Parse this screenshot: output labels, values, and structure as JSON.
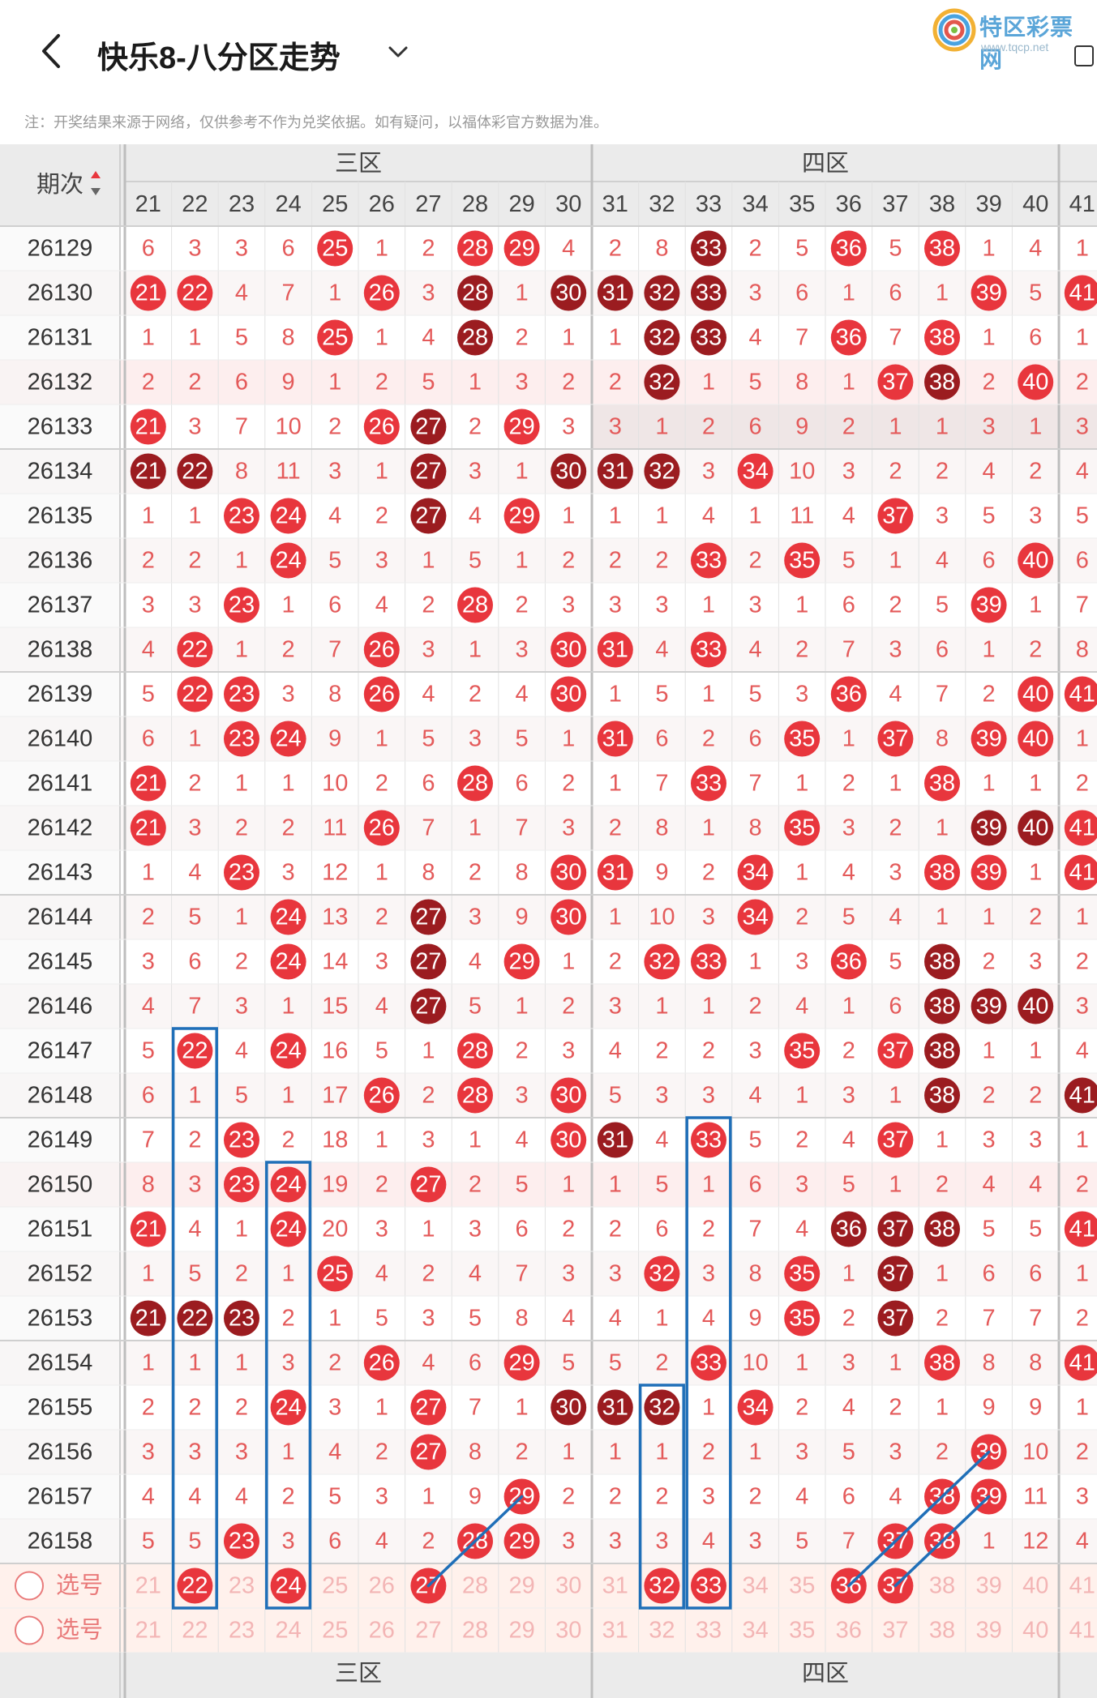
{
  "header": {
    "title": "快乐8-八分区走势",
    "logo_text": "特区彩票网",
    "logo_url": "www.tqcp.net"
  },
  "notice": "注：开奖结果来源于网络，仅供参考不作为兑奖依据。如有疑问，以福体彩官方数据为准。",
  "table": {
    "period_header": "期次",
    "zones": [
      "三区",
      "四区"
    ],
    "columns": [
      21,
      22,
      23,
      24,
      25,
      26,
      27,
      28,
      29,
      30,
      31,
      32,
      33,
      34,
      35,
      36,
      37,
      38,
      39,
      40,
      41
    ],
    "rows": [
      {
        "period": "26129",
        "cells": [
          "6",
          "3",
          "3",
          "6",
          "25",
          "1",
          "2",
          "28",
          "29",
          "4",
          "2",
          "8",
          "33",
          "2",
          "5",
          "36",
          "5",
          "38",
          "1",
          "4",
          "1"
        ]
      },
      {
        "period": "26130",
        "cells": [
          "21",
          "22",
          "4",
          "7",
          "1",
          "26",
          "3",
          "28",
          "1",
          "30",
          "31",
          "32",
          "33",
          "3",
          "6",
          "1",
          "6",
          "1",
          "39",
          "5",
          "41"
        ]
      },
      {
        "period": "26131",
        "cells": [
          "1",
          "1",
          "5",
          "8",
          "25",
          "1",
          "4",
          "28",
          "2",
          "1",
          "1",
          "32",
          "33",
          "4",
          "7",
          "36",
          "7",
          "38",
          "1",
          "6",
          "1"
        ]
      },
      {
        "period": "26132",
        "cells": [
          "2",
          "2",
          "6",
          "9",
          "1",
          "2",
          "5",
          "1",
          "3",
          "2",
          "2",
          "32",
          "1",
          "5",
          "8",
          "1",
          "37",
          "38",
          "2",
          "40",
          "2"
        ]
      },
      {
        "period": "26133",
        "cells": [
          "21",
          "3",
          "7",
          "10",
          "2",
          "26",
          "27",
          "2",
          "29",
          "3",
          "3",
          "1",
          "2",
          "6",
          "9",
          "2",
          "1",
          "1",
          "3",
          "1",
          "3"
        ]
      },
      {
        "period": "26134",
        "cells": [
          "21",
          "22",
          "8",
          "11",
          "3",
          "1",
          "27",
          "3",
          "1",
          "30",
          "31",
          "32",
          "3",
          "34",
          "10",
          "3",
          "2",
          "2",
          "4",
          "2",
          "4"
        ]
      },
      {
        "period": "26135",
        "cells": [
          "1",
          "1",
          "23",
          "24",
          "4",
          "2",
          "27",
          "4",
          "29",
          "1",
          "1",
          "1",
          "4",
          "1",
          "11",
          "4",
          "37",
          "3",
          "5",
          "3",
          "5"
        ]
      },
      {
        "period": "26136",
        "cells": [
          "2",
          "2",
          "1",
          "24",
          "5",
          "3",
          "1",
          "5",
          "1",
          "2",
          "2",
          "2",
          "33",
          "2",
          "35",
          "5",
          "1",
          "4",
          "6",
          "40",
          "6"
        ]
      },
      {
        "period": "26137",
        "cells": [
          "3",
          "3",
          "23",
          "1",
          "6",
          "4",
          "2",
          "28",
          "2",
          "3",
          "3",
          "3",
          "1",
          "3",
          "1",
          "6",
          "2",
          "5",
          "39",
          "1",
          "7"
        ]
      },
      {
        "period": "26138",
        "cells": [
          "4",
          "22",
          "1",
          "2",
          "7",
          "26",
          "3",
          "1",
          "3",
          "30",
          "31",
          "4",
          "33",
          "4",
          "2",
          "7",
          "3",
          "6",
          "1",
          "2",
          "8"
        ]
      },
      {
        "period": "26139",
        "cells": [
          "5",
          "22",
          "23",
          "3",
          "8",
          "26",
          "4",
          "2",
          "4",
          "30",
          "1",
          "5",
          "1",
          "5",
          "3",
          "36",
          "4",
          "7",
          "2",
          "40",
          "41"
        ]
      },
      {
        "period": "26140",
        "cells": [
          "6",
          "1",
          "23",
          "24",
          "9",
          "1",
          "5",
          "3",
          "5",
          "1",
          "31",
          "6",
          "2",
          "6",
          "35",
          "1",
          "37",
          "8",
          "39",
          "40",
          "1"
        ]
      },
      {
        "period": "26141",
        "cells": [
          "21",
          "2",
          "1",
          "1",
          "10",
          "2",
          "6",
          "28",
          "6",
          "2",
          "1",
          "7",
          "33",
          "7",
          "1",
          "2",
          "1",
          "38",
          "1",
          "1",
          "2"
        ]
      },
      {
        "period": "26142",
        "cells": [
          "21",
          "3",
          "2",
          "2",
          "11",
          "26",
          "7",
          "1",
          "7",
          "3",
          "2",
          "8",
          "1",
          "8",
          "35",
          "3",
          "2",
          "1",
          "39",
          "40",
          "41"
        ]
      },
      {
        "period": "26143",
        "cells": [
          "1",
          "4",
          "23",
          "3",
          "12",
          "1",
          "8",
          "2",
          "8",
          "30",
          "31",
          "9",
          "2",
          "34",
          "1",
          "4",
          "3",
          "38",
          "39",
          "1",
          "41"
        ]
      },
      {
        "period": "26144",
        "cells": [
          "2",
          "5",
          "1",
          "24",
          "13",
          "2",
          "27",
          "3",
          "9",
          "30",
          "1",
          "10",
          "3",
          "34",
          "2",
          "5",
          "4",
          "1",
          "1",
          "2",
          "1"
        ]
      },
      {
        "period": "26145",
        "cells": [
          "3",
          "6",
          "2",
          "24",
          "14",
          "3",
          "27",
          "4",
          "29",
          "1",
          "2",
          "32",
          "33",
          "1",
          "3",
          "36",
          "5",
          "38",
          "2",
          "3",
          "2"
        ]
      },
      {
        "period": "26146",
        "cells": [
          "4",
          "7",
          "3",
          "1",
          "15",
          "4",
          "27",
          "5",
          "1",
          "2",
          "3",
          "1",
          "1",
          "2",
          "4",
          "1",
          "6",
          "38",
          "39",
          "40",
          "3"
        ]
      },
      {
        "period": "26147",
        "cells": [
          "5",
          "22",
          "4",
          "24",
          "16",
          "5",
          "1",
          "28",
          "2",
          "3",
          "4",
          "2",
          "2",
          "3",
          "35",
          "2",
          "37",
          "38",
          "1",
          "1",
          "4"
        ]
      },
      {
        "period": "26148",
        "cells": [
          "6",
          "1",
          "5",
          "1",
          "17",
          "26",
          "2",
          "28",
          "3",
          "30",
          "5",
          "3",
          "3",
          "4",
          "1",
          "3",
          "1",
          "38",
          "2",
          "2",
          "41"
        ]
      },
      {
        "period": "26149",
        "cells": [
          "7",
          "2",
          "23",
          "2",
          "18",
          "1",
          "3",
          "1",
          "4",
          "30",
          "31",
          "4",
          "33",
          "5",
          "2",
          "4",
          "37",
          "1",
          "3",
          "3",
          "1"
        ]
      },
      {
        "period": "26150",
        "cells": [
          "8",
          "3",
          "23",
          "24",
          "19",
          "2",
          "27",
          "2",
          "5",
          "1",
          "1",
          "5",
          "1",
          "6",
          "3",
          "5",
          "1",
          "2",
          "4",
          "4",
          "2"
        ]
      },
      {
        "period": "26151",
        "cells": [
          "21",
          "4",
          "1",
          "24",
          "20",
          "3",
          "1",
          "3",
          "6",
          "2",
          "2",
          "6",
          "2",
          "7",
          "4",
          "36",
          "37",
          "38",
          "5",
          "5",
          "41"
        ]
      },
      {
        "period": "26152",
        "cells": [
          "1",
          "5",
          "2",
          "1",
          "25",
          "4",
          "2",
          "4",
          "7",
          "3",
          "3",
          "32",
          "3",
          "8",
          "35",
          "1",
          "37",
          "1",
          "6",
          "6",
          "1"
        ]
      },
      {
        "period": "26153",
        "cells": [
          "21",
          "22",
          "23",
          "2",
          "1",
          "5",
          "3",
          "5",
          "8",
          "4",
          "4",
          "1",
          "4",
          "9",
          "35",
          "2",
          "37",
          "2",
          "7",
          "7",
          "2"
        ]
      },
      {
        "period": "26154",
        "cells": [
          "1",
          "1",
          "1",
          "3",
          "2",
          "26",
          "4",
          "6",
          "29",
          "5",
          "5",
          "2",
          "33",
          "10",
          "1",
          "3",
          "1",
          "38",
          "8",
          "8",
          "41"
        ]
      },
      {
        "period": "26155",
        "cells": [
          "2",
          "2",
          "2",
          "24",
          "3",
          "1",
          "27",
          "7",
          "1",
          "30",
          "31",
          "32",
          "1",
          "34",
          "2",
          "4",
          "2",
          "1",
          "9",
          "9",
          "1"
        ]
      },
      {
        "period": "26156",
        "cells": [
          "3",
          "3",
          "3",
          "1",
          "4",
          "2",
          "27",
          "8",
          "2",
          "1",
          "1",
          "1",
          "2",
          "1",
          "3",
          "5",
          "3",
          "2",
          "39",
          "10",
          "2"
        ]
      },
      {
        "period": "26157",
        "cells": [
          "4",
          "4",
          "4",
          "2",
          "5",
          "3",
          "1",
          "9",
          "29",
          "2",
          "2",
          "2",
          "3",
          "2",
          "4",
          "6",
          "4",
          "38",
          "39",
          "11",
          "3"
        ]
      },
      {
        "period": "26158",
        "cells": [
          "5",
          "5",
          "23",
          "3",
          "6",
          "4",
          "2",
          "28",
          "29",
          "3",
          "3",
          "3",
          "4",
          "3",
          "5",
          "7",
          "37",
          "38",
          "1",
          "12",
          "4"
        ]
      }
    ],
    "pick_rows": [
      {
        "label": "选号",
        "cells": [
          "21",
          "22",
          "23",
          "24",
          "25",
          "26",
          "27",
          "28",
          "29",
          "30",
          "31",
          "32",
          "33",
          "34",
          "35",
          "36",
          "37",
          "38",
          "39",
          "40",
          "41"
        ],
        "selected": [
          "22",
          "24",
          "27",
          "32",
          "33",
          "36",
          "37"
        ]
      },
      {
        "label": "选号",
        "cells": [
          "21",
          "22",
          "23",
          "24",
          "25",
          "26",
          "27",
          "28",
          "29",
          "30",
          "31",
          "32",
          "33",
          "34",
          "35",
          "36",
          "37",
          "38",
          "39",
          "40",
          "41"
        ],
        "selected": []
      }
    ]
  },
  "colors": {
    "ball_red": "#e8363d",
    "ball_dark": "#9b1c20",
    "miss_text": "#e45a5a",
    "highlight_box": "#1f6fb8"
  }
}
